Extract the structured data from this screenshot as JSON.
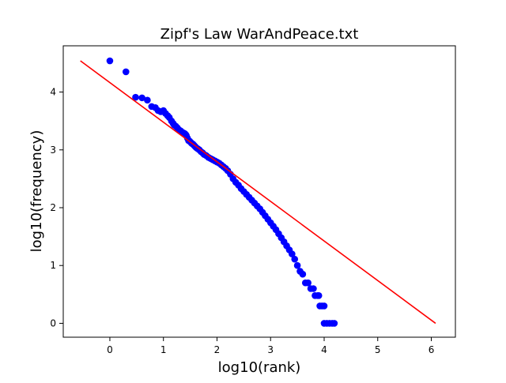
{
  "chart_data": {
    "type": "scatter",
    "title": "Zipf's Law WarAndPeace.txt",
    "xlabel": "log10(rank)",
    "ylabel": "log10(frequency)",
    "xlim": [
      -0.87,
      6.45
    ],
    "ylim": [
      -0.24,
      4.8
    ],
    "xticks": [
      0,
      1,
      2,
      3,
      4,
      5,
      6
    ],
    "yticks": [
      0,
      1,
      2,
      3,
      4
    ],
    "grid": false,
    "series": [
      {
        "kind": "scatter",
        "color": "#0000ff",
        "points": [
          [
            0.0,
            4.54
          ],
          [
            0.3,
            4.35
          ],
          [
            0.48,
            3.91
          ],
          [
            0.6,
            3.9
          ],
          [
            0.7,
            3.86
          ],
          [
            0.78,
            3.75
          ],
          [
            0.85,
            3.73
          ],
          [
            0.9,
            3.68
          ],
          [
            0.95,
            3.66
          ],
          [
            1.0,
            3.68
          ],
          [
            1.04,
            3.63
          ],
          [
            1.08,
            3.59
          ],
          [
            1.11,
            3.56
          ],
          [
            1.15,
            3.5
          ],
          [
            1.18,
            3.46
          ],
          [
            1.2,
            3.43
          ],
          [
            1.23,
            3.41
          ],
          [
            1.26,
            3.38
          ],
          [
            1.28,
            3.35
          ],
          [
            1.3,
            3.34
          ],
          [
            1.32,
            3.33
          ],
          [
            1.34,
            3.31
          ],
          [
            1.36,
            3.3
          ],
          [
            1.38,
            3.29
          ],
          [
            1.4,
            3.28
          ],
          [
            1.42,
            3.26
          ],
          [
            1.43,
            3.24
          ],
          [
            1.45,
            3.2
          ],
          [
            1.47,
            3.16
          ],
          [
            1.49,
            3.15
          ],
          [
            1.51,
            3.13
          ],
          [
            1.53,
            3.11
          ],
          [
            1.55,
            3.1
          ],
          [
            1.57,
            3.08
          ],
          [
            1.59,
            3.06
          ],
          [
            1.61,
            3.04
          ],
          [
            1.64,
            3.02
          ],
          [
            1.67,
            3.0
          ],
          [
            1.7,
            2.97
          ],
          [
            1.73,
            2.95
          ],
          [
            1.76,
            2.92
          ],
          [
            1.8,
            2.9
          ],
          [
            1.84,
            2.87
          ],
          [
            1.88,
            2.85
          ],
          [
            1.92,
            2.83
          ],
          [
            1.96,
            2.81
          ],
          [
            2.0,
            2.79
          ],
          [
            2.04,
            2.77
          ],
          [
            2.08,
            2.74
          ],
          [
            2.12,
            2.71
          ],
          [
            2.16,
            2.68
          ],
          [
            2.2,
            2.64
          ],
          [
            2.25,
            2.58
          ],
          [
            2.3,
            2.5
          ],
          [
            2.35,
            2.44
          ],
          [
            2.4,
            2.39
          ],
          [
            2.45,
            2.33
          ],
          [
            2.5,
            2.28
          ],
          [
            2.55,
            2.23
          ],
          [
            2.6,
            2.18
          ],
          [
            2.65,
            2.13
          ],
          [
            2.7,
            2.08
          ],
          [
            2.75,
            2.03
          ],
          [
            2.8,
            1.98
          ],
          [
            2.85,
            1.92
          ],
          [
            2.9,
            1.86
          ],
          [
            2.95,
            1.8
          ],
          [
            3.0,
            1.74
          ],
          [
            3.05,
            1.68
          ],
          [
            3.1,
            1.62
          ],
          [
            3.15,
            1.55
          ],
          [
            3.2,
            1.48
          ],
          [
            3.25,
            1.41
          ],
          [
            3.3,
            1.34
          ],
          [
            3.35,
            1.27
          ],
          [
            3.4,
            1.2
          ],
          [
            3.45,
            1.11
          ],
          [
            3.5,
            1.0
          ],
          [
            3.55,
            0.9
          ],
          [
            3.6,
            0.85
          ],
          [
            3.65,
            0.7
          ],
          [
            3.7,
            0.7
          ],
          [
            3.75,
            0.6
          ],
          [
            3.8,
            0.6
          ],
          [
            3.83,
            0.48
          ],
          [
            3.88,
            0.48
          ],
          [
            3.9,
            0.48
          ],
          [
            3.92,
            0.3
          ],
          [
            3.96,
            0.3
          ],
          [
            4.0,
            0.3
          ],
          [
            4.0,
            0.0
          ],
          [
            4.05,
            0.0
          ],
          [
            4.1,
            0.0
          ],
          [
            4.15,
            0.0
          ],
          [
            4.19,
            0.0
          ]
        ]
      },
      {
        "kind": "line",
        "color": "#ff0000",
        "points": [
          [
            -0.55,
            4.54
          ],
          [
            6.08,
            0.0
          ]
        ]
      }
    ]
  }
}
